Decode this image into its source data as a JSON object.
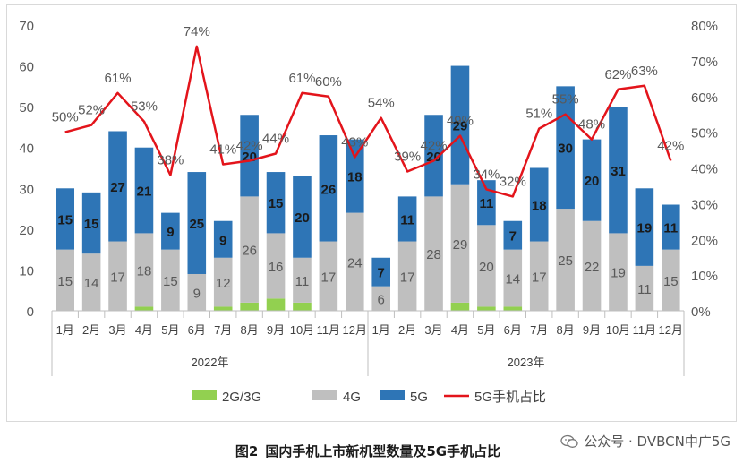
{
  "chart_data": {
    "type": "bar",
    "stacked": true,
    "years": [
      "2022年",
      "2023年"
    ],
    "categories": [
      "1月",
      "2月",
      "3月",
      "4月",
      "5月",
      "6月",
      "7月",
      "8月",
      "9月",
      "10月",
      "11月",
      "12月",
      "1月",
      "2月",
      "3月",
      "4月",
      "5月",
      "6月",
      "7月",
      "8月",
      "9月",
      "10月",
      "11月",
      "12月"
    ],
    "series": [
      {
        "name": "2G/3G",
        "color": "#92d050",
        "values": [
          0,
          0,
          0,
          1,
          0,
          0,
          1,
          2,
          3,
          2,
          0,
          0,
          0,
          0,
          0,
          2,
          1,
          1,
          0,
          0,
          0,
          0,
          0,
          0
        ]
      },
      {
        "name": "4G",
        "color": "#bfbfbf",
        "values": [
          15,
          14,
          17,
          18,
          15,
          9,
          12,
          26,
          16,
          11,
          17,
          24,
          6,
          17,
          28,
          29,
          20,
          14,
          17,
          25,
          22,
          19,
          11,
          15
        ]
      },
      {
        "name": "5G",
        "color": "#2e75b6",
        "values": [
          15,
          15,
          27,
          21,
          9,
          25,
          9,
          20,
          15,
          20,
          26,
          18,
          7,
          11,
          20,
          29,
          11,
          7,
          18,
          30,
          20,
          31,
          19,
          11
        ]
      }
    ],
    "line_series": {
      "name": "5G手机占比",
      "color": "#e3141b",
      "values": [
        50,
        52,
        61,
        53,
        38,
        74,
        41,
        42,
        44,
        61,
        60,
        43,
        54,
        39,
        42,
        49,
        34,
        32,
        51,
        55,
        48,
        62,
        63,
        42
      ]
    },
    "line_labels": [
      "50%",
      "52%",
      "61%",
      "53%",
      "38%",
      "74%",
      "41%",
      "42%",
      "44%",
      "61%",
      "60%",
      "43%",
      "54%",
      "39%",
      "42%",
      "49%",
      "34%",
      "32%",
      "51%",
      "55%",
      "48%",
      "62%",
      "63%",
      "42%"
    ],
    "y_left": {
      "ticks": [
        "0",
        "10",
        "20",
        "30",
        "40",
        "50",
        "60",
        "70"
      ],
      "ylim": [
        0,
        70
      ]
    },
    "y_right": {
      "ticks": [
        "0%",
        "10%",
        "20%",
        "30%",
        "40%",
        "50%",
        "60%",
        "70%",
        "80%"
      ],
      "ylim": [
        0,
        80
      ]
    },
    "legend": {
      "position": "bottom",
      "items": [
        {
          "label": "2G/3G",
          "color": "#92d050",
          "kind": "bar"
        },
        {
          "label": "4G",
          "color": "#bfbfbf",
          "kind": "bar"
        },
        {
          "label": "5G",
          "color": "#2e75b6",
          "kind": "bar"
        },
        {
          "label": "5G手机占比",
          "color": "#e3141b",
          "kind": "line"
        }
      ]
    },
    "grid": false
  },
  "caption": {
    "figure_no": "图2",
    "title": "国内手机上市新机型数量及5G手机占比"
  },
  "source": {
    "icon": "wechat-icon",
    "text": "公众号 · DVBCN中广5G"
  }
}
